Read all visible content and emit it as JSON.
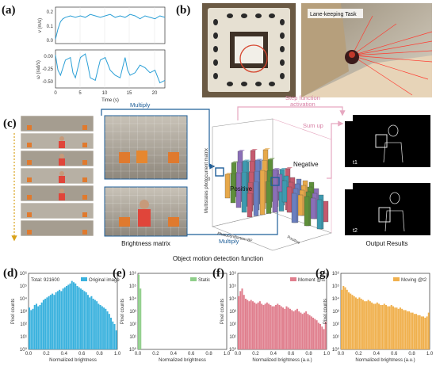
{
  "panels": {
    "a": {
      "label": "(a)",
      "top_ylabel": "v (m/s)",
      "bottom_ylabel": "ω (rad/s)",
      "xlabel": "Time (s)",
      "top_yticks": [
        "0.2",
        "0.1",
        "0.0"
      ],
      "bottom_yticks": [
        "0.00",
        "-0.25",
        "-0.50"
      ],
      "xticks": [
        "0",
        "5",
        "10",
        "15",
        "20"
      ],
      "line_color": "#2a9fd6"
    },
    "b": {
      "label": "(b)",
      "caption": "Lane-keeping Task"
    },
    "c": {
      "label": "(c)",
      "multiply_top": "Multiply",
      "multiply_bottom": "Multiply",
      "step_function": "Step function activation",
      "sum_up": "Sum up",
      "brightness_matrix": "Brightness matrix",
      "chart_ylabel": "Multistates photocurrent matrix",
      "chart_xlabel": "Photoconduction BF",
      "positive_axis": "Positive",
      "zero_tick": "0",
      "positive_label": "Positive",
      "negative_label": "Negative",
      "output_results": "Output Results",
      "frame_t1": "t1",
      "frame_t2": "t2",
      "function_title": "Object motion detection function"
    },
    "d": {
      "label": "(d)",
      "legend": "Original image",
      "total": "Total: 921600",
      "xlabel": "Normalized brightness",
      "ylabel": "Pixel counts",
      "color": "#3bb2de"
    },
    "e": {
      "label": "(e)",
      "legend": "Static",
      "xlabel": "Normalized brightness",
      "ylabel": "Pixel counts",
      "color": "#8fce8a"
    },
    "f": {
      "label": "(f)",
      "legend": "Moment @t1",
      "xlabel": "Normalized brightness (a.u.)",
      "ylabel": "Pixel counts",
      "color": "#e07f8e"
    },
    "g": {
      "label": "(g)",
      "legend": "Moving @t2",
      "xlabel": "Normalized brightness (a.u.)",
      "ylabel": "Pixel counts",
      "color": "#f0b04d"
    }
  },
  "hist_axes": {
    "yticks": [
      "10⁶",
      "10⁵",
      "10⁴",
      "10³",
      "10²",
      "10¹",
      "10⁰"
    ],
    "xticks": [
      "0.0",
      "0.2",
      "0.4",
      "0.6",
      "0.8",
      "1.0"
    ]
  },
  "chart_data": [
    {
      "type": "line",
      "id": "a_top",
      "xlim": [
        0,
        22
      ],
      "ylim": [
        0,
        0.25
      ],
      "x": [
        0,
        0.5,
        1,
        1.5,
        2,
        3,
        4,
        5,
        6,
        7,
        8,
        9,
        10,
        11,
        12,
        13,
        14,
        15,
        16,
        17,
        18,
        19,
        20,
        21,
        22
      ],
      "y": [
        0.03,
        0.1,
        0.15,
        0.17,
        0.18,
        0.19,
        0.18,
        0.19,
        0.18,
        0.2,
        0.19,
        0.18,
        0.19,
        0.2,
        0.18,
        0.19,
        0.18,
        0.2,
        0.19,
        0.17,
        0.19,
        0.18,
        0.17,
        0.19,
        0.18
      ]
    },
    {
      "type": "line",
      "id": "a_bottom",
      "xlim": [
        0,
        22
      ],
      "ylim": [
        -0.65,
        0.1
      ],
      "x": [
        0,
        0.5,
        1,
        2,
        3,
        3.5,
        4,
        5,
        6,
        6.5,
        7,
        8,
        8.5,
        9,
        10,
        11,
        12,
        13,
        14,
        14.5,
        15,
        16,
        17,
        18,
        19,
        20,
        21,
        22
      ],
      "y": [
        0.0,
        -0.3,
        -0.4,
        -0.1,
        -0.05,
        -0.35,
        -0.45,
        -0.05,
        0.02,
        -0.2,
        -0.45,
        -0.5,
        -0.3,
        -0.1,
        -0.05,
        -0.3,
        -0.4,
        -0.45,
        -0.05,
        -0.3,
        -0.4,
        -0.35,
        -0.2,
        -0.25,
        -0.35,
        -0.3,
        -0.55,
        -0.5
      ]
    },
    {
      "type": "bar",
      "id": "d_hist",
      "log_scale": true,
      "ylim_exp": [
        0,
        6
      ],
      "values_log10": [
        3.3,
        3.1,
        3.2,
        3.5,
        3.6,
        3.4,
        3.5,
        3.7,
        3.9,
        4.0,
        4.1,
        4.2,
        4.3,
        4.4,
        4.3,
        4.5,
        4.6,
        4.7,
        4.6,
        4.8,
        4.9,
        5.0,
        5.1,
        5.2,
        5.4,
        5.3,
        5.2,
        5.0,
        4.9,
        4.8,
        4.7,
        4.6,
        4.5,
        4.3,
        4.1,
        4.2,
        4.0,
        3.9,
        3.8,
        3.6,
        3.5,
        3.4,
        3.3,
        3.2,
        3.0,
        2.8,
        2.5,
        2.2,
        2.0,
        1.5
      ]
    },
    {
      "type": "bar",
      "id": "e_hist",
      "log_scale": true,
      "ylim_exp": [
        0,
        6
      ],
      "values_log10": [
        5.9,
        4.8,
        0,
        0,
        0,
        0,
        0,
        0,
        0,
        0,
        0,
        0,
        0,
        0,
        0,
        0,
        0,
        0,
        0,
        0,
        0,
        0,
        0,
        0,
        0,
        0,
        0,
        0,
        0,
        0,
        0,
        0,
        0,
        0,
        0,
        0,
        0,
        0,
        0,
        0,
        0,
        0,
        0,
        0,
        0,
        0,
        0,
        0,
        0,
        0
      ]
    },
    {
      "type": "bar",
      "id": "f_hist",
      "log_scale": true,
      "ylim_exp": [
        0,
        6
      ],
      "values_log10": [
        4.2,
        4.6,
        4.8,
        4.3,
        4.0,
        3.9,
        3.8,
        3.9,
        3.8,
        3.7,
        3.6,
        3.7,
        3.8,
        3.6,
        3.5,
        3.6,
        3.7,
        3.6,
        3.5,
        3.4,
        3.4,
        3.5,
        3.6,
        3.5,
        3.4,
        3.3,
        3.2,
        3.4,
        3.3,
        3.2,
        3.1,
        3.0,
        3.1,
        3.2,
        3.0,
        2.9,
        2.8,
        2.9,
        3.0,
        2.8,
        2.7,
        2.6,
        2.5,
        2.4,
        2.3,
        2.1,
        2.0,
        1.8,
        1.6,
        2.2
      ]
    },
    {
      "type": "bar",
      "id": "g_hist",
      "log_scale": true,
      "ylim_exp": [
        0,
        6
      ],
      "values_log10": [
        4.7,
        5.0,
        4.9,
        4.7,
        4.5,
        4.4,
        4.3,
        4.2,
        4.1,
        4.0,
        4.1,
        4.0,
        3.9,
        3.8,
        3.8,
        3.9,
        3.8,
        3.7,
        3.6,
        3.6,
        3.7,
        3.6,
        3.5,
        3.5,
        3.6,
        3.5,
        3.4,
        3.4,
        3.5,
        3.4,
        3.3,
        3.3,
        3.2,
        3.3,
        3.2,
        3.1,
        3.1,
        3.0,
        3.0,
        2.9,
        2.9,
        2.8,
        2.8,
        2.7,
        2.7,
        2.6,
        2.6,
        2.5,
        2.6,
        2.9
      ]
    }
  ]
}
